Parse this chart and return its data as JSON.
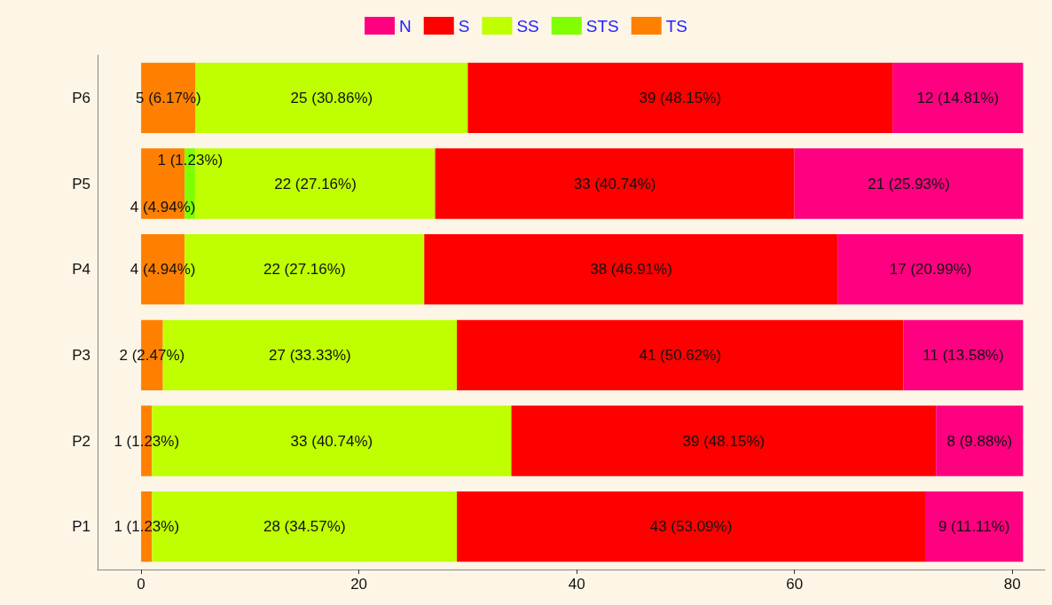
{
  "chart_data": {
    "type": "bar",
    "orientation": "horizontal",
    "stacked": true,
    "categories": [
      "P6",
      "P5",
      "P4",
      "P3",
      "P2",
      "P1"
    ],
    "xlim": [
      -4,
      83
    ],
    "xticks": [
      0,
      20,
      40,
      60,
      80
    ],
    "grid": false,
    "legend": "top",
    "series": [
      {
        "name": "TS",
        "color": "#ff8000",
        "values": [
          5,
          4,
          4,
          2,
          1,
          1
        ],
        "value_labels": [
          "5 (6.17%)",
          "4 (4.94%)",
          "4 (4.94%)",
          "2 (2.47%)",
          "1 (1.23%)",
          "1 (1.23%)"
        ]
      },
      {
        "name": "STS",
        "color": "#80ff00",
        "values": [
          null,
          1,
          null,
          null,
          null,
          null
        ],
        "value_labels": [
          null,
          "1 (1.23%)",
          null,
          null,
          null,
          null
        ]
      },
      {
        "name": "SS",
        "color": "#bfff00",
        "values": [
          25,
          22,
          22,
          27,
          33,
          28
        ],
        "value_labels": [
          "25 (30.86%)",
          "22 (27.16%)",
          "22 (27.16%)",
          "27 (33.33%)",
          "33 (40.74%)",
          "28 (34.57%)"
        ]
      },
      {
        "name": "S",
        "color": "#ff0000",
        "values": [
          39,
          33,
          38,
          41,
          39,
          43
        ],
        "value_labels": [
          "39 (48.15%)",
          "33 (40.74%)",
          "38 (46.91%)",
          "41 (50.62%)",
          "39 (48.15%)",
          "43 (53.09%)"
        ]
      },
      {
        "name": "N",
        "color": "#ff0080",
        "values": [
          12,
          21,
          17,
          11,
          8,
          9
        ],
        "value_labels": [
          "12 (14.81%)",
          "21 (25.93%)",
          "17 (20.99%)",
          "11 (13.58%)",
          "8 (9.88%)",
          "9 (11.11%)"
        ]
      }
    ]
  }
}
